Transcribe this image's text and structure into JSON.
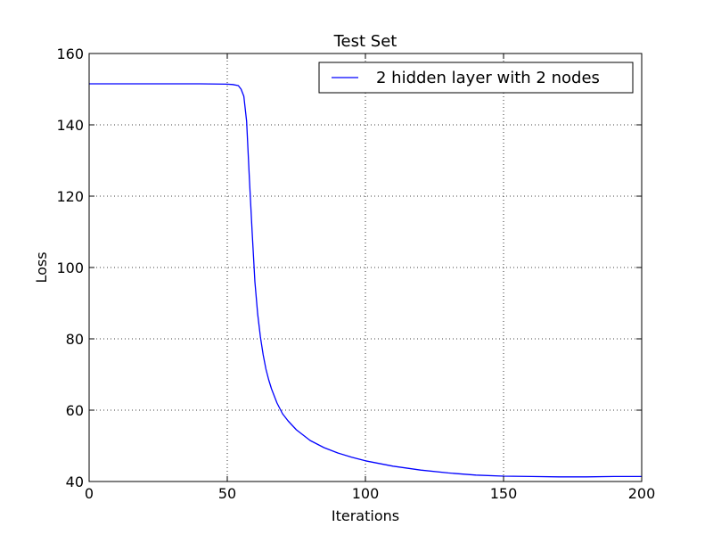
{
  "chart_data": {
    "type": "line",
    "title": "Test Set",
    "xlabel": "Iterations",
    "ylabel": "Loss",
    "xlim": [
      0,
      200
    ],
    "ylim": [
      40,
      160
    ],
    "xticks": [
      0,
      50,
      100,
      150,
      200
    ],
    "yticks": [
      40,
      60,
      80,
      100,
      120,
      140,
      160
    ],
    "xtick_labels": [
      "0",
      "50",
      "100",
      "150",
      "200"
    ],
    "ytick_labels": [
      "40",
      "60",
      "80",
      "100",
      "120",
      "140",
      "160"
    ],
    "grid": true,
    "legend_position": "top-right",
    "series": [
      {
        "name": "2 hidden layer with 2 nodes",
        "color": "#0000ff",
        "x": [
          0,
          10,
          20,
          30,
          40,
          50,
          52,
          54,
          55,
          56,
          57,
          58,
          59,
          60,
          61,
          62,
          63,
          64,
          65,
          66,
          67,
          68,
          70,
          72,
          75,
          80,
          85,
          90,
          95,
          100,
          110,
          120,
          130,
          140,
          150,
          160,
          170,
          180,
          190,
          200
        ],
        "y": [
          151.5,
          151.5,
          151.5,
          151.5,
          151.5,
          151.4,
          151.3,
          151.0,
          150.0,
          148.0,
          141.0,
          125.0,
          110.0,
          96.0,
          87.0,
          80.5,
          75.5,
          71.5,
          68.5,
          66.0,
          64.0,
          62.0,
          59.0,
          57.0,
          54.5,
          51.5,
          49.5,
          48.0,
          46.8,
          45.8,
          44.3,
          43.2,
          42.4,
          41.8,
          41.5,
          41.4,
          41.3,
          41.3,
          41.4,
          41.4
        ]
      }
    ]
  }
}
